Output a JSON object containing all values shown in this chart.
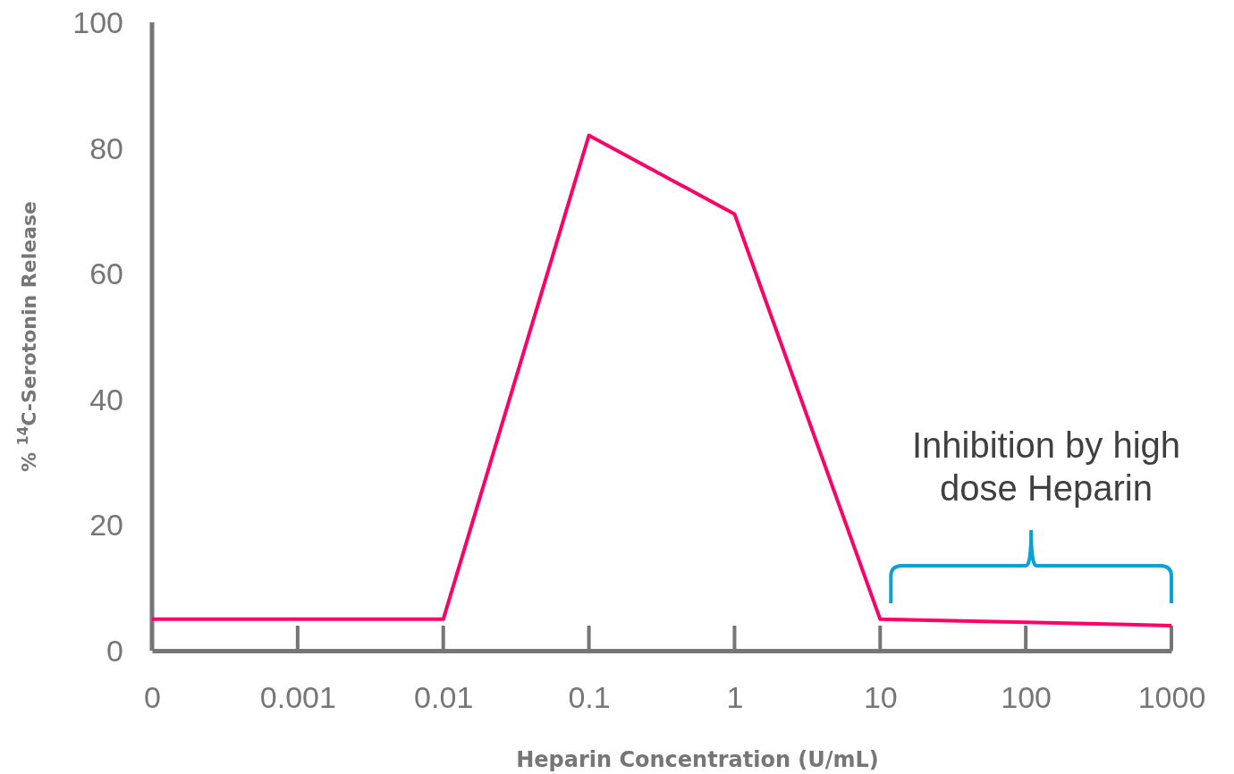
{
  "chart_data": {
    "type": "line",
    "xlabel": "Heparin Concentration (U/mL)",
    "ylabel": "% $^{14}$C-Serotonin Release",
    "categories": [
      "0",
      "0.001",
      "0.01",
      "0.1",
      "1",
      "10",
      "100",
      "1000"
    ],
    "series": [
      {
        "color": "#ff0066",
        "values": [
          5,
          5,
          5,
          82,
          69.5,
          5,
          4.5,
          4
        ]
      }
    ],
    "ylim": [
      0,
      100
    ],
    "yticks": [
      0,
      20,
      40,
      60,
      80,
      100
    ],
    "annotations": [
      "Inhibition by high dose Heparin"
    ],
    "marker": "none",
    "line_style": "solid"
  }
}
